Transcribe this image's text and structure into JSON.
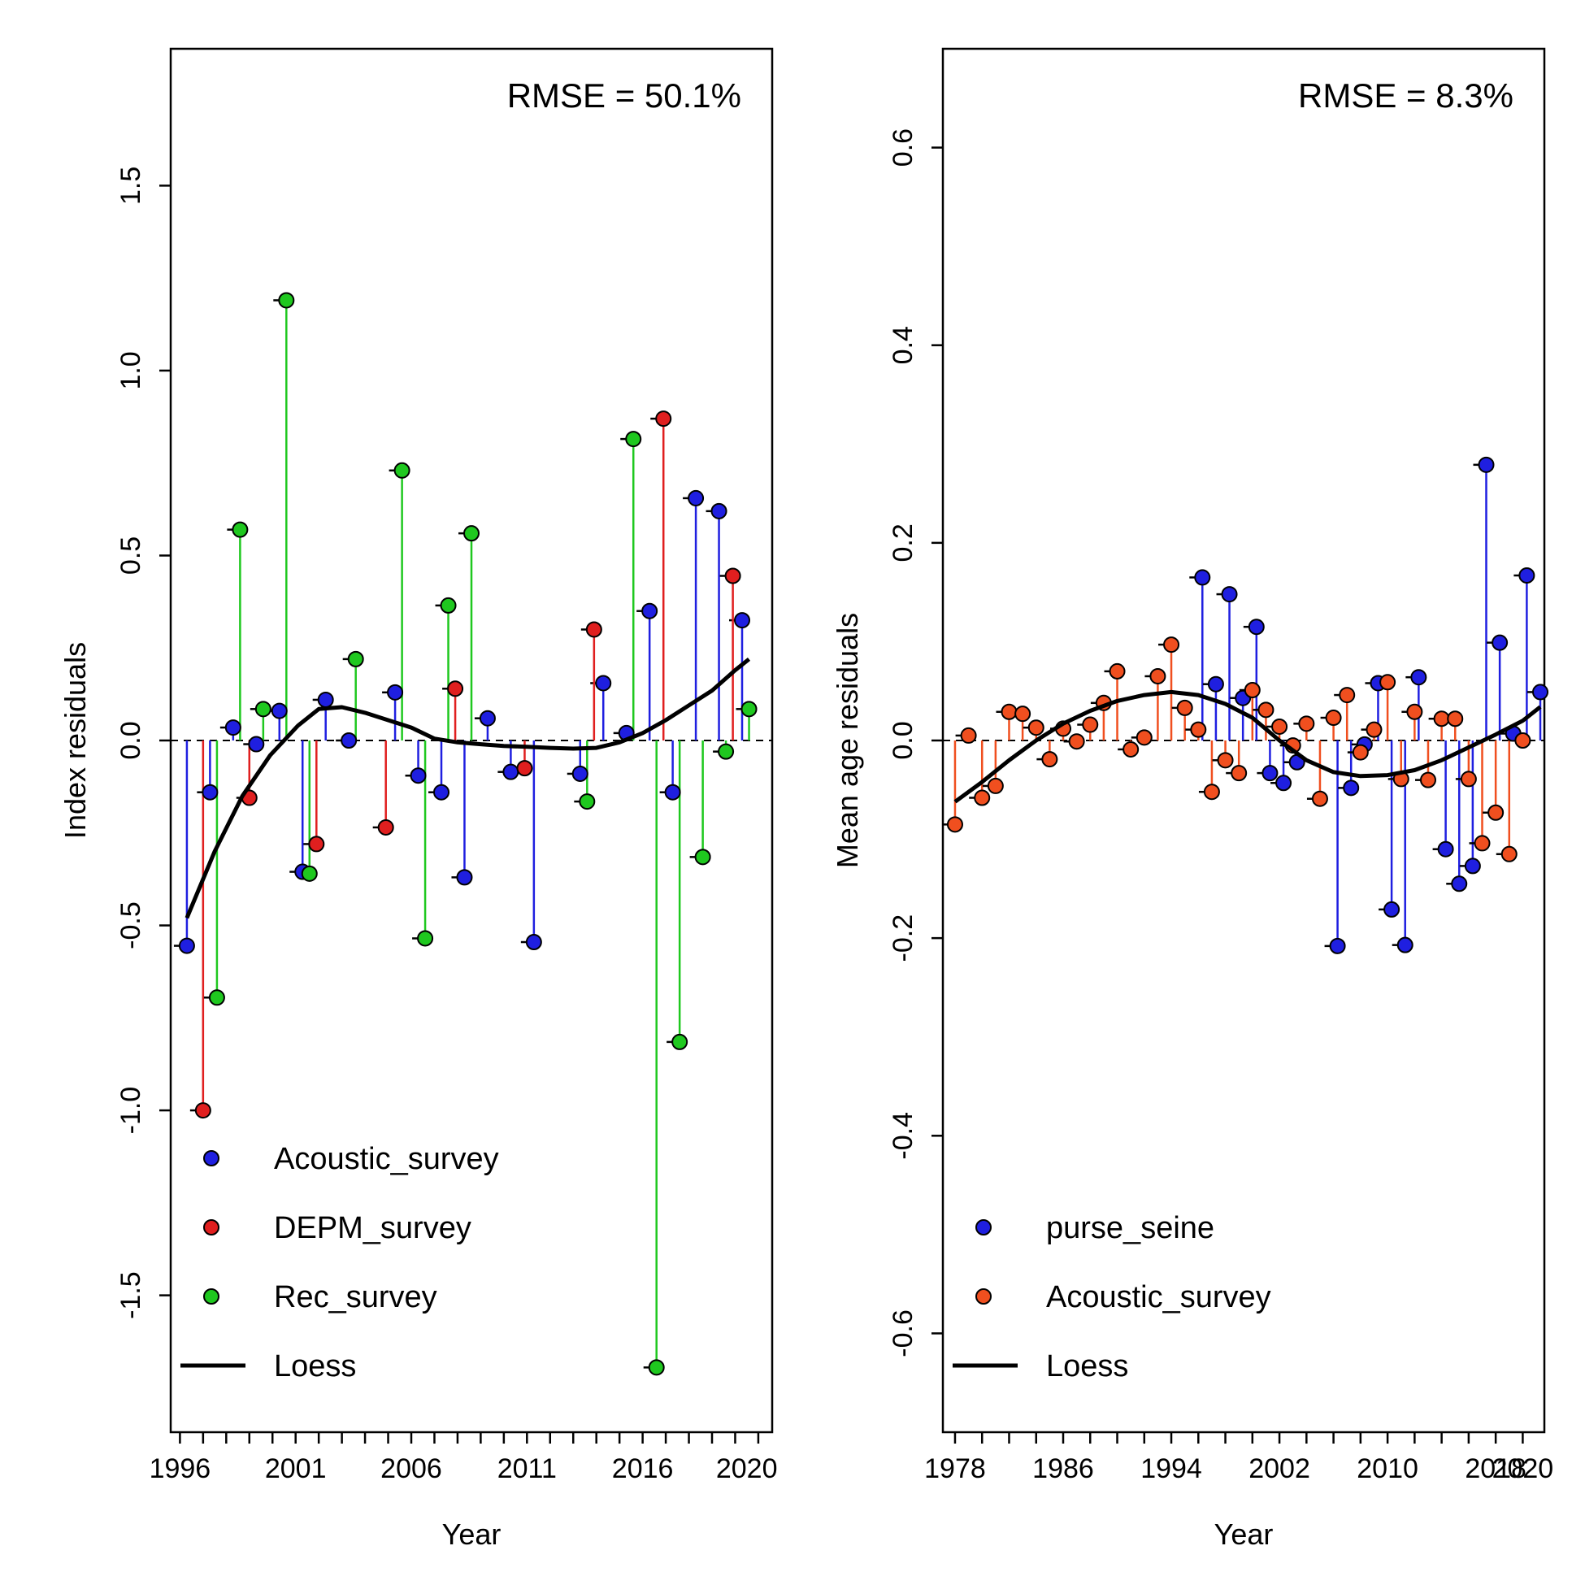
{
  "colors": {
    "Acoustic_survey_left": "#1f1fe0",
    "DEPM_survey": "#e01f1f",
    "Rec_survey": "#1fc81f",
    "purse_seine": "#1f1fe0",
    "Acoustic_survey_right": "#f04f1f",
    "loess": "#000000"
  },
  "chart_data": [
    {
      "type": "scatter",
      "panel": "left",
      "annotation": "RMSE = 50.1%",
      "ylabel": "Index residuals",
      "xlabel": "Year",
      "xlim": [
        1995.6,
        2021.6
      ],
      "ylim": [
        -1.87,
        1.87
      ],
      "xticks": [
        1996,
        1997,
        1998,
        1999,
        2000,
        2001,
        2002,
        2003,
        2004,
        2005,
        2006,
        2007,
        2008,
        2009,
        2010,
        2011,
        2012,
        2013,
        2014,
        2015,
        2016,
        2017,
        2018,
        2019,
        2020,
        2021
      ],
      "xtick_labels": [
        "1996",
        "2001",
        "2006",
        "2011",
        "2016",
        "2020"
      ],
      "xtick_label_values": [
        1996,
        2001,
        2006,
        2011,
        2016,
        2020.5
      ],
      "yticks": [
        -1.5,
        -1.0,
        -0.5,
        0.0,
        0.5,
        1.0,
        1.5
      ],
      "ytick_labels": [
        "-1.5",
        "-1.0",
        "-0.5",
        "0.0",
        "0.5",
        "1.0",
        "1.5"
      ],
      "grid": false,
      "legend_position": "bottom-left",
      "series": [
        {
          "name": "Acoustic_survey",
          "color_key": "Acoustic_survey_left",
          "x": [
            1996.3,
            1997.3,
            1998.3,
            1999.3,
            2000.3,
            2001.3,
            2002.3,
            2003.3,
            2005.3,
            2006.3,
            2007.3,
            2008.3,
            2009.3,
            2010.3,
            2011.3,
            2013.3,
            2014.3,
            2015.3,
            2016.3,
            2017.3,
            2018.3,
            2019.3,
            2020.3
          ],
          "y": [
            -0.555,
            -0.14,
            0.035,
            -0.01,
            0.08,
            -0.355,
            0.11,
            0.0,
            0.13,
            -0.095,
            -0.14,
            -0.37,
            0.06,
            -0.085,
            -0.545,
            -0.09,
            0.155,
            0.02,
            0.35,
            -0.14,
            0.655,
            0.62,
            0.325
          ]
        },
        {
          "name": "DEPM_survey",
          "color_key": "DEPM_survey",
          "x": [
            1997.0,
            1999.0,
            2001.9,
            2004.9,
            2007.9,
            2010.9,
            2013.9,
            2016.9,
            2019.9
          ],
          "y": [
            -1.0,
            -0.155,
            -0.28,
            -0.235,
            0.14,
            -0.075,
            0.3,
            0.87,
            0.445
          ]
        },
        {
          "name": "Rec_survey",
          "color_key": "Rec_survey",
          "x": [
            1997.6,
            1998.6,
            1999.6,
            2000.6,
            2001.6,
            2003.6,
            2005.6,
            2006.6,
            2007.6,
            2008.6,
            2013.6,
            2015.6,
            2016.6,
            2017.6,
            2018.6,
            2019.6,
            2020.6
          ],
          "y": [
            -0.695,
            0.57,
            0.085,
            1.19,
            -0.36,
            0.22,
            0.73,
            -0.535,
            0.365,
            0.56,
            -0.165,
            0.815,
            -1.695,
            -0.815,
            -0.315,
            -0.03,
            0.085
          ]
        }
      ],
      "loess": {
        "name": "Loess",
        "x": [
          1996.3,
          1997.5,
          1998.7,
          1999.9,
          2001.1,
          2002.0,
          2003.0,
          2004.0,
          2005.0,
          2006.0,
          2007.0,
          2008.0,
          2009.0,
          2010.0,
          2011.0,
          2012.0,
          2013.0,
          2014.0,
          2015.0,
          2016.0,
          2017.0,
          2018.0,
          2019.0,
          2020.0,
          2020.6
        ],
        "y": [
          -0.48,
          -0.3,
          -0.15,
          -0.04,
          0.04,
          0.085,
          0.09,
          0.075,
          0.055,
          0.035,
          0.005,
          -0.005,
          -0.01,
          -0.015,
          -0.017,
          -0.02,
          -0.022,
          -0.02,
          -0.005,
          0.02,
          0.055,
          0.095,
          0.135,
          0.19,
          0.22
        ]
      }
    },
    {
      "type": "scatter",
      "panel": "right",
      "annotation": "RMSE = 8.3%",
      "ylabel": "Mean age residuals",
      "xlabel": "Year",
      "xlim": [
        1977.1,
        2021.6
      ],
      "ylim": [
        -0.7,
        0.7
      ],
      "xticks": [
        1978,
        1980,
        1982,
        1984,
        1986,
        1988,
        1990,
        1992,
        1994,
        1996,
        1998,
        2000,
        2002,
        2004,
        2006,
        2008,
        2010,
        2012,
        2014,
        2016,
        2018,
        2020
      ],
      "xtick_labels": [
        "1978",
        "1986",
        "1994",
        "2002",
        "2010",
        "2018",
        "2020"
      ],
      "xtick_label_values": [
        1978,
        1986,
        1994,
        2002,
        2010,
        2018,
        2020
      ],
      "yticks": [
        -0.6,
        -0.4,
        -0.2,
        0.0,
        0.2,
        0.4,
        0.6
      ],
      "ytick_labels": [
        "-0.6",
        "-0.4",
        "-0.2",
        "0.0",
        "0.2",
        "0.4",
        "0.6"
      ],
      "grid": false,
      "legend_position": "bottom-left",
      "series": [
        {
          "name": "purse_seine",
          "color_key": "purse_seine",
          "x": [
            1996.3,
            1997.3,
            1998.3,
            1999.3,
            2000.3,
            2001.3,
            2002.3,
            2003.3,
            2006.3,
            2007.3,
            2008.3,
            2009.3,
            2010.3,
            2011.3,
            2012.3,
            2014.3,
            2015.3,
            2016.3,
            2017.3,
            2018.3,
            2019.3,
            2020.3,
            2021.3
          ],
          "y": [
            0.165,
            0.057,
            0.148,
            0.043,
            0.115,
            -0.033,
            -0.043,
            -0.022,
            -0.208,
            -0.048,
            -0.004,
            0.058,
            -0.171,
            -0.207,
            0.064,
            -0.11,
            -0.145,
            -0.127,
            0.279,
            0.099,
            0.007,
            0.167,
            0.049
          ]
        },
        {
          "name": "Acoustic_survey",
          "color_key": "Acoustic_survey_right",
          "x": [
            1978.0,
            1979.0,
            1980.0,
            1981.0,
            1982.0,
            1983.0,
            1984.0,
            1985.0,
            1986.0,
            1987.0,
            1988.0,
            1989.0,
            1990.0,
            1991.0,
            1992.0,
            1993.0,
            1994.0,
            1995.0,
            1996.0,
            1997.0,
            1998.0,
            1999.0,
            2000.0,
            2001.0,
            2002.0,
            2003.0,
            2004.0,
            2005.0,
            2006.0,
            2007.0,
            2008.0,
            2009.0,
            2010.0,
            2011.0,
            2012.0,
            2013.0,
            2014.0,
            2015.0,
            2016.0,
            2017.0,
            2018.0,
            2019.0,
            2020.0
          ],
          "y": [
            -0.085,
            0.005,
            -0.058,
            -0.046,
            0.029,
            0.027,
            0.013,
            -0.019,
            0.012,
            -0.001,
            0.016,
            0.038,
            0.07,
            -0.009,
            0.003,
            0.065,
            0.097,
            0.033,
            0.011,
            -0.052,
            -0.02,
            -0.033,
            0.051,
            0.031,
            0.014,
            -0.005,
            0.017,
            -0.059,
            0.023,
            0.046,
            -0.012,
            0.011,
            0.059,
            -0.039,
            0.029,
            -0.04,
            0.022,
            0.022,
            -0.039,
            -0.104,
            -0.073,
            -0.115,
            0.0
          ]
        }
      ],
      "loess": {
        "name": "Loess",
        "x": [
          1978.0,
          1980.0,
          1982.0,
          1984.0,
          1986.0,
          1988.0,
          1990.0,
          1992.0,
          1994.0,
          1996.0,
          1998.0,
          2000.0,
          2002.0,
          2004.0,
          2006.0,
          2008.0,
          2010.0,
          2012.0,
          2014.0,
          2016.0,
          2018.0,
          2020.0,
          2021.3
        ],
        "y": [
          -0.062,
          -0.042,
          -0.02,
          0.0,
          0.017,
          0.03,
          0.04,
          0.046,
          0.049,
          0.046,
          0.037,
          0.023,
          0.0,
          -0.02,
          -0.032,
          -0.036,
          -0.035,
          -0.03,
          -0.02,
          -0.007,
          0.006,
          0.02,
          0.034
        ]
      }
    }
  ]
}
